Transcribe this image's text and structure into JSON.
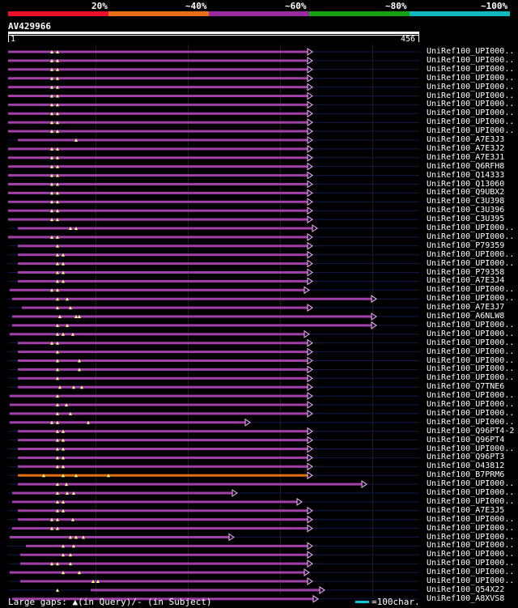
{
  "legend": {
    "labels": [
      "20%",
      "~40%",
      "~60%",
      "~80%",
      "~100%"
    ],
    "colors": [
      "#e8102a",
      "#e87018",
      "#9a2aa0",
      "#16a012",
      "#10b8c0"
    ]
  },
  "query": {
    "id": "AV429966",
    "start_label": "1",
    "end_label": "456",
    "length": 456
  },
  "colors": {
    "hit_bar": "#a040a8",
    "hit_bar_orange": "#e07010",
    "thin_line": "#101a4a",
    "gap_marker": "#ffff88",
    "arrow": "#ffb0ff"
  },
  "hits": [
    {
      "label": "UniRef100_UPI000..",
      "gaps": [
        62,
        69
      ]
    },
    {
      "label": "UniRef100_UPI000..",
      "gaps": [
        62,
        69
      ]
    },
    {
      "label": "UniRef100_UPI000..",
      "gaps": [
        62,
        69
      ]
    },
    {
      "label": "UniRef100_UPI000..",
      "gaps": [
        62,
        69
      ]
    },
    {
      "label": "UniRef100_UPI000..",
      "gaps": [
        62,
        69
      ]
    },
    {
      "label": "UniRef100_UPI000..",
      "gaps": [
        62,
        69
      ]
    },
    {
      "label": "UniRef100_UPI000..",
      "gaps": [
        62,
        69
      ]
    },
    {
      "label": "UniRef100_UPI000..",
      "gaps": [
        62,
        69
      ]
    },
    {
      "label": "UniRef100_UPI000..",
      "gaps": [
        62,
        69
      ]
    },
    {
      "label": "UniRef100_UPI000..",
      "gaps": [
        62,
        69
      ]
    },
    {
      "label": "UniRef100_A7E3J3",
      "gaps": [
        92
      ]
    },
    {
      "label": "UniRef100_A7E3J2",
      "gaps": [
        62,
        69
      ]
    },
    {
      "label": "UniRef100_A7E3J1",
      "gaps": [
        62,
        69
      ]
    },
    {
      "label": "UniRef100_Q6RFH8",
      "gaps": [
        62,
        69
      ]
    },
    {
      "label": "UniRef100_Q14333",
      "gaps": [
        62,
        69
      ]
    },
    {
      "label": "UniRef100_Q13060",
      "gaps": [
        62,
        69
      ]
    },
    {
      "label": "UniRef100_Q9UBX2",
      "gaps": [
        62,
        69
      ]
    },
    {
      "label": "UniRef100_C3U398",
      "gaps": [
        62,
        69
      ]
    },
    {
      "label": "UniRef100_C3U396",
      "gaps": [
        62,
        69
      ]
    },
    {
      "label": "UniRef100_C3U395",
      "gaps": [
        62,
        69
      ]
    },
    {
      "label": "UniRef100_UPI000..",
      "gaps": [
        85,
        92
      ]
    },
    {
      "label": "UniRef100_UPI000..",
      "gaps": [
        62,
        69
      ]
    },
    {
      "label": "UniRef100_P79359",
      "gaps": [
        69
      ]
    },
    {
      "label": "UniRef100_UPI000..",
      "gaps": [
        69,
        76
      ]
    },
    {
      "label": "UniRef100_UPI000..",
      "gaps": [
        69,
        76
      ]
    },
    {
      "label": "UniRef100_P79358",
      "gaps": [
        69,
        76
      ]
    },
    {
      "label": "UniRef100_A7E3J4",
      "gaps": [
        69,
        76
      ]
    },
    {
      "label": "UniRef100_UPI000..",
      "gaps": [
        62,
        69
      ]
    },
    {
      "label": "UniRef100_UPI000..",
      "gaps": [
        69,
        81
      ]
    },
    {
      "label": "UniRef100_A7E3J7",
      "gaps": [
        69,
        85
      ]
    },
    {
      "label": "UniRef100_A6NLW8",
      "gaps": [
        72,
        92,
        96
      ]
    },
    {
      "label": "UniRef100_UPI000..",
      "gaps": [
        69,
        81
      ]
    },
    {
      "label": "UniRef100_UPI000..",
      "gaps": [
        69,
        76,
        88
      ]
    },
    {
      "label": "UniRef100_UPI000..",
      "gaps": [
        62,
        69
      ]
    },
    {
      "label": "UniRef100_UPI000..",
      "gaps": [
        69
      ]
    },
    {
      "label": "UniRef100_UPI000..",
      "gaps": [
        69,
        96
      ]
    },
    {
      "label": "UniRef100_UPI000..",
      "gaps": [
        69,
        96
      ]
    },
    {
      "label": "UniRef100_UPI000..",
      "gaps": [
        69
      ]
    },
    {
      "label": "UniRef100_Q7TNE6",
      "gaps": [
        72,
        89,
        99
      ]
    },
    {
      "label": "UniRef100_UPI000..",
      "gaps": [
        69
      ]
    },
    {
      "label": "UniRef100_UPI000..",
      "gaps": [
        69,
        80
      ]
    },
    {
      "label": "UniRef100_UPI000..",
      "gaps": [
        69,
        85
      ]
    },
    {
      "label": "UniRef100_UPI000..",
      "gaps": [
        62,
        69,
        107
      ]
    },
    {
      "label": "UniRef100_Q96PT4-2",
      "gaps": [
        69,
        76
      ]
    },
    {
      "label": "UniRef100_Q96PT4",
      "gaps": [
        69,
        76
      ]
    },
    {
      "label": "UniRef100_UPI000..",
      "gaps": [
        69,
        76
      ]
    },
    {
      "label": "UniRef100_Q96PT3",
      "gaps": [
        69,
        76
      ]
    },
    {
      "label": "UniRef100_O43812",
      "gaps": [
        69,
        76
      ]
    },
    {
      "label": "UniRef100_B7PRM6",
      "gaps": [
        52,
        76,
        92,
        132
      ]
    },
    {
      "label": "UniRef100_UPI000..",
      "gaps": [
        69,
        80
      ]
    },
    {
      "label": "UniRef100_UPI000..",
      "gaps": [
        69,
        81,
        89
      ]
    },
    {
      "label": "UniRef100_UPI000..",
      "gaps": [
        69,
        76
      ]
    },
    {
      "label": "UniRef100_A7E3J5",
      "gaps": [
        69,
        76
      ]
    },
    {
      "label": "UniRef100_UPI000..",
      "gaps": [
        62,
        69,
        88
      ]
    },
    {
      "label": "UniRef100_UPI000..",
      "gaps": [
        62,
        69
      ]
    },
    {
      "label": "UniRef100_UPI000..",
      "gaps": [
        85,
        92,
        101
      ]
    },
    {
      "label": "UniRef100_UPI000..",
      "gaps": [
        76,
        89
      ]
    },
    {
      "label": "UniRef100_UPI000..",
      "gaps": [
        76,
        85
      ]
    },
    {
      "label": "UniRef100_UPI000..",
      "gaps": [
        62,
        69,
        85
      ]
    },
    {
      "label": "UniRef100_UPI000..",
      "gaps": [
        76,
        96
      ]
    },
    {
      "label": "UniRef100_UPI000..",
      "gaps": [
        113,
        119
      ]
    },
    {
      "label": "UniRef100_Q54X22",
      "gaps": [
        69
      ]
    },
    {
      "label": "UniRef100_A8XVS8",
      "gaps": []
    }
  ],
  "footer": {
    "gaps_text": "Large gaps: ▲(in Query)/- (in Subject)",
    "scale_text": "=100char."
  }
}
